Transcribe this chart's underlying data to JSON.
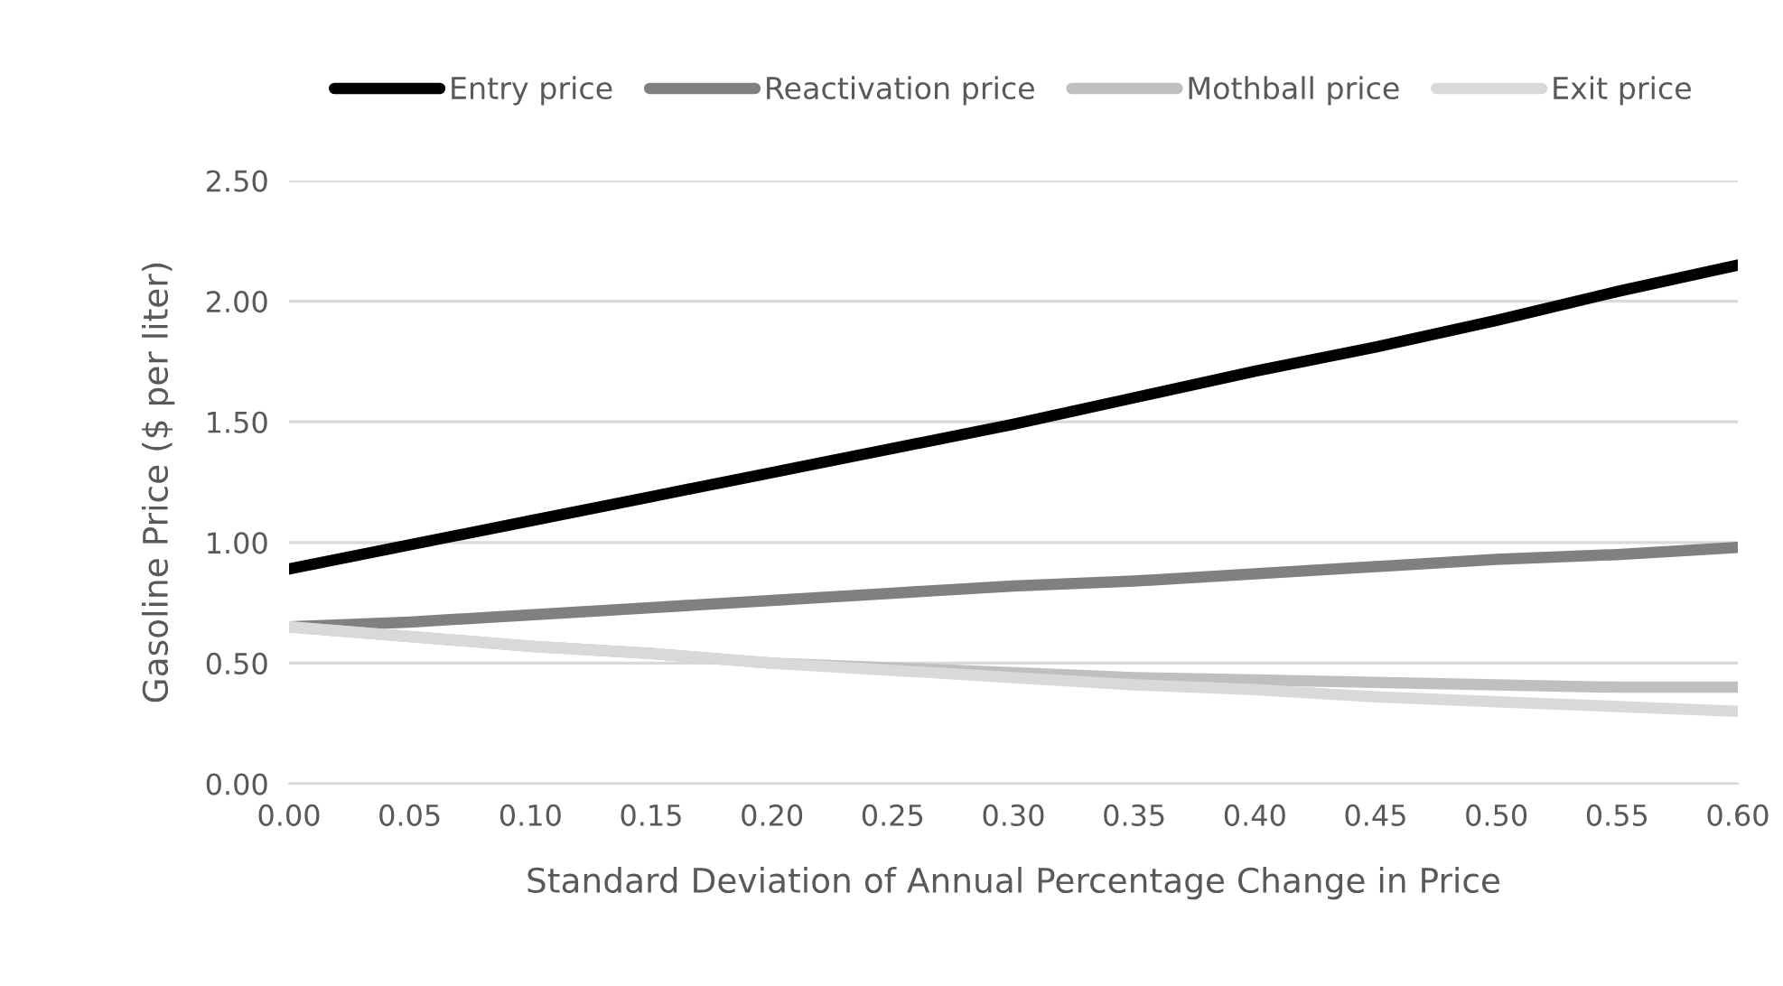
{
  "chart_data": {
    "type": "line",
    "xlabel": "Standard Deviation of Annual Percentage Change in Price",
    "ylabel": "Gasoline Price ($ per liter)",
    "x": [
      0,
      0.05,
      0.1,
      0.15,
      0.2,
      0.25,
      0.3,
      0.35,
      0.4,
      0.45,
      0.5,
      0.55,
      0.6
    ],
    "series": [
      {
        "name": "Entry price",
        "color": "#000000",
        "values": [
          0.89,
          0.99,
          1.09,
          1.19,
          1.29,
          1.39,
          1.49,
          1.6,
          1.71,
          1.81,
          1.92,
          2.04,
          2.15
        ]
      },
      {
        "name": "Reactivation price",
        "color": "#808080",
        "values": [
          0.65,
          0.67,
          0.7,
          0.73,
          0.76,
          0.79,
          0.82,
          0.84,
          0.87,
          0.9,
          0.93,
          0.95,
          0.98
        ]
      },
      {
        "name": "Mothball price",
        "color": "#bfbfbf",
        "values": [
          0.65,
          0.61,
          0.57,
          0.54,
          0.5,
          0.48,
          0.46,
          0.44,
          0.43,
          0.42,
          0.41,
          0.4,
          0.4
        ]
      },
      {
        "name": "Exit price",
        "color": "#d9d9d9",
        "values": [
          0.65,
          0.61,
          0.57,
          0.54,
          0.5,
          0.47,
          0.44,
          0.41,
          0.39,
          0.36,
          0.34,
          0.32,
          0.3
        ]
      }
    ],
    "xlim": [
      0,
      0.6
    ],
    "xticks": [
      {
        "value": 0,
        "label": "0.00"
      },
      {
        "value": 0.05,
        "label": "0.05"
      },
      {
        "value": 0.1,
        "label": "0.10"
      },
      {
        "value": 0.15,
        "label": "0.15"
      },
      {
        "value": 0.2,
        "label": "0.20"
      },
      {
        "value": 0.25,
        "label": "0.25"
      },
      {
        "value": 0.3,
        "label": "0.30"
      },
      {
        "value": 0.35,
        "label": "0.35"
      },
      {
        "value": 0.4,
        "label": "0.40"
      },
      {
        "value": 0.45,
        "label": "0.45"
      },
      {
        "value": 0.5,
        "label": "0.50"
      },
      {
        "value": 0.55,
        "label": "0.55"
      },
      {
        "value": 0.6,
        "label": "0.60"
      }
    ],
    "ylim": [
      0,
      2.5
    ],
    "yticks": [
      {
        "value": 0,
        "label": "0.00"
      },
      {
        "value": 0.5,
        "label": "0.50"
      },
      {
        "value": 1,
        "label": "1.00"
      },
      {
        "value": 1.5,
        "label": "1.50"
      },
      {
        "value": 2,
        "label": "2.00"
      },
      {
        "value": 2.5,
        "label": "2.50"
      }
    ],
    "grid": "y",
    "legend": "top",
    "marker": "none",
    "line_style": "solid"
  }
}
